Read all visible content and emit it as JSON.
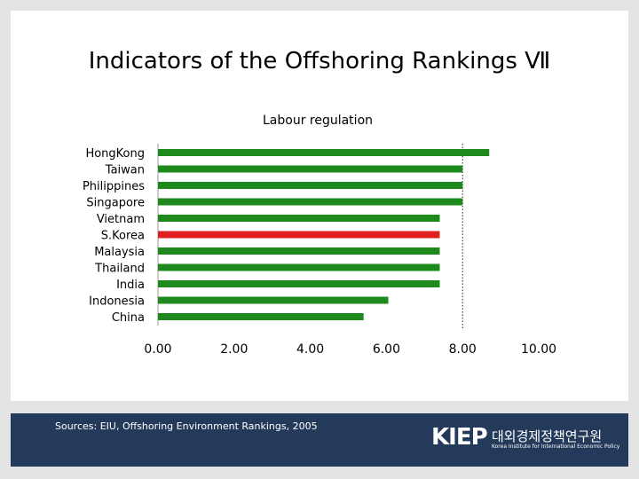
{
  "slide": {
    "title": "Indicators of the Offshoring Rankings Ⅶ"
  },
  "footer": {
    "sources": "Sources: EIU, Offshoring Environment Rankings, 2005",
    "logo_mark": "KIEP",
    "logo_korean": "대외경제정책연구원",
    "logo_english": "Korea Institute for International Economic Policy"
  },
  "colors": {
    "bar": "#1e8a1e",
    "highlight_bar": "#e02020",
    "footer_bg": "#243a5a"
  },
  "chart_data": {
    "type": "bar",
    "orientation": "horizontal",
    "title": "Labour regulation",
    "categories": [
      "HongKong",
      "Taiwan",
      "Philippines",
      "Singapore",
      "Vietnam",
      "S.Korea",
      "Malaysia",
      "Thailand",
      "India",
      "Indonesia",
      "China"
    ],
    "values": [
      8.7,
      8.0,
      8.0,
      8.0,
      7.4,
      7.4,
      7.4,
      7.4,
      7.4,
      6.05,
      5.4
    ],
    "highlight": "S.Korea",
    "xlim": [
      0,
      10
    ],
    "xticks": [
      "0.00",
      "2.00",
      "4.00",
      "6.00",
      "8.00",
      "10.00"
    ],
    "reference_line": 8.0,
    "grid": false,
    "legend": "none"
  }
}
